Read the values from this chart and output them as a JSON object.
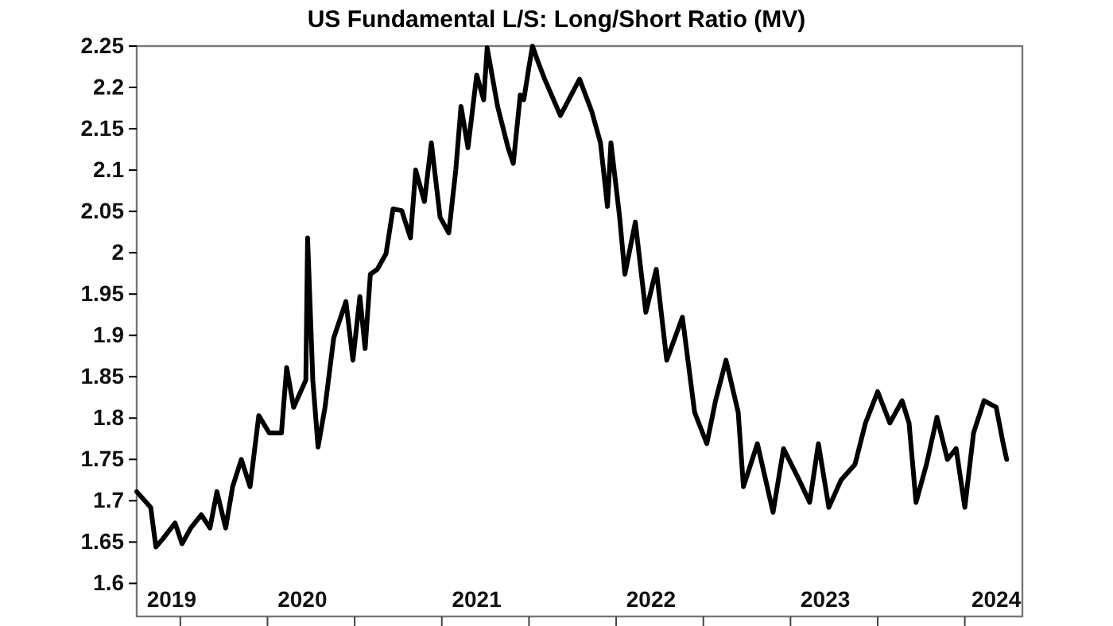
{
  "chart_data": {
    "type": "line",
    "title": "US Fundamental L/S: Long/Short Ratio (MV)",
    "x": [
      2019.25,
      2019.33,
      2019.36,
      2019.4,
      2019.47,
      2019.51,
      2019.56,
      2019.62,
      2019.67,
      2019.71,
      2019.76,
      2019.8,
      2019.85,
      2019.9,
      2019.95,
      2020.01,
      2020.08,
      2020.11,
      2020.15,
      2020.22,
      2020.23,
      2020.26,
      2020.29,
      2020.33,
      2020.38,
      2020.42,
      2020.45,
      2020.49,
      2020.53,
      2020.56,
      2020.59,
      2020.63,
      2020.68,
      2020.72,
      2020.77,
      2020.82,
      2020.85,
      2020.9,
      2020.94,
      2020.99,
      2021.04,
      2021.08,
      2021.11,
      2021.15,
      2021.2,
      2021.24,
      2021.26,
      2021.32,
      2021.38,
      2021.41,
      2021.45,
      2021.47,
      2021.5,
      2021.52,
      2021.55,
      2021.59,
      2021.68,
      2021.79,
      2021.86,
      2021.91,
      2021.95,
      2021.97,
      2022.02,
      2022.05,
      2022.11,
      2022.17,
      2022.23,
      2022.29,
      2022.38,
      2022.45,
      2022.52,
      2022.57,
      2022.63,
      2022.7,
      2022.73,
      2022.81,
      2022.9,
      2022.96,
      2023.05,
      2023.11,
      2023.16,
      2023.22,
      2023.29,
      2023.37,
      2023.43,
      2023.5,
      2023.57,
      2023.64,
      2023.68,
      2023.72,
      2023.78,
      2023.84,
      2023.9,
      2023.95,
      2024.0,
      2024.05,
      2024.11,
      2024.18,
      2024.22,
      2024.24
    ],
    "series": [
      {
        "color": "#000000",
        "values": [
          1.711,
          1.692,
          1.644,
          1.654,
          1.673,
          1.648,
          1.667,
          1.683,
          1.667,
          1.711,
          1.667,
          1.717,
          1.75,
          1.717,
          1.803,
          1.782,
          1.782,
          1.861,
          1.813,
          1.846,
          2.018,
          1.846,
          1.765,
          1.813,
          1.897,
          1.922,
          1.941,
          1.87,
          1.947,
          1.884,
          1.974,
          1.98,
          1.999,
          2.053,
          2.051,
          2.018,
          2.1,
          2.062,
          2.133,
          2.043,
          2.024,
          2.1,
          2.177,
          2.127,
          2.215,
          2.185,
          2.248,
          2.177,
          2.127,
          2.108,
          2.191,
          2.185,
          2.225,
          2.25,
          2.232,
          2.21,
          2.166,
          2.21,
          2.171,
          2.133,
          2.056,
          2.133,
          2.043,
          1.974,
          2.037,
          1.928,
          1.98,
          1.87,
          1.922,
          1.807,
          1.769,
          1.821,
          1.87,
          1.807,
          1.717,
          1.769,
          1.686,
          1.763,
          1.725,
          1.698,
          1.769,
          1.692,
          1.725,
          1.744,
          1.794,
          1.832,
          1.794,
          1.821,
          1.794,
          1.698,
          1.744,
          1.801,
          1.75,
          1.763,
          1.692,
          1.782,
          1.821,
          1.813,
          1.769,
          1.75
        ]
      }
    ],
    "xlim": [
      2019.25,
      2024.33
    ],
    "xticks": [
      {
        "value": 2019.45,
        "label": "2019"
      },
      {
        "value": 2019.5,
        "label": null
      },
      {
        "value": 2020.0,
        "label": null
      },
      {
        "value": 2020.2,
        "label": "2020"
      },
      {
        "value": 2020.5,
        "label": null
      },
      {
        "value": 2021.0,
        "label": null
      },
      {
        "value": 2021.2,
        "label": "2021"
      },
      {
        "value": 2021.5,
        "label": null
      },
      {
        "value": 2022.0,
        "label": null
      },
      {
        "value": 2022.2,
        "label": "2022"
      },
      {
        "value": 2022.5,
        "label": null
      },
      {
        "value": 2023.0,
        "label": null
      },
      {
        "value": 2023.2,
        "label": "2023"
      },
      {
        "value": 2023.5,
        "label": null
      },
      {
        "value": 2024.0,
        "label": null
      },
      {
        "value": 2024.18,
        "label": "2024"
      }
    ],
    "ylim": [
      1.56,
      2.25
    ],
    "yticks": [
      1.6,
      1.65,
      1.7,
      1.75,
      1.8,
      1.85,
      1.9,
      1.95,
      2,
      2.05,
      2.1,
      2.15,
      2.2,
      2.25
    ],
    "grid": false,
    "marker": "none",
    "line_style": "solid"
  }
}
